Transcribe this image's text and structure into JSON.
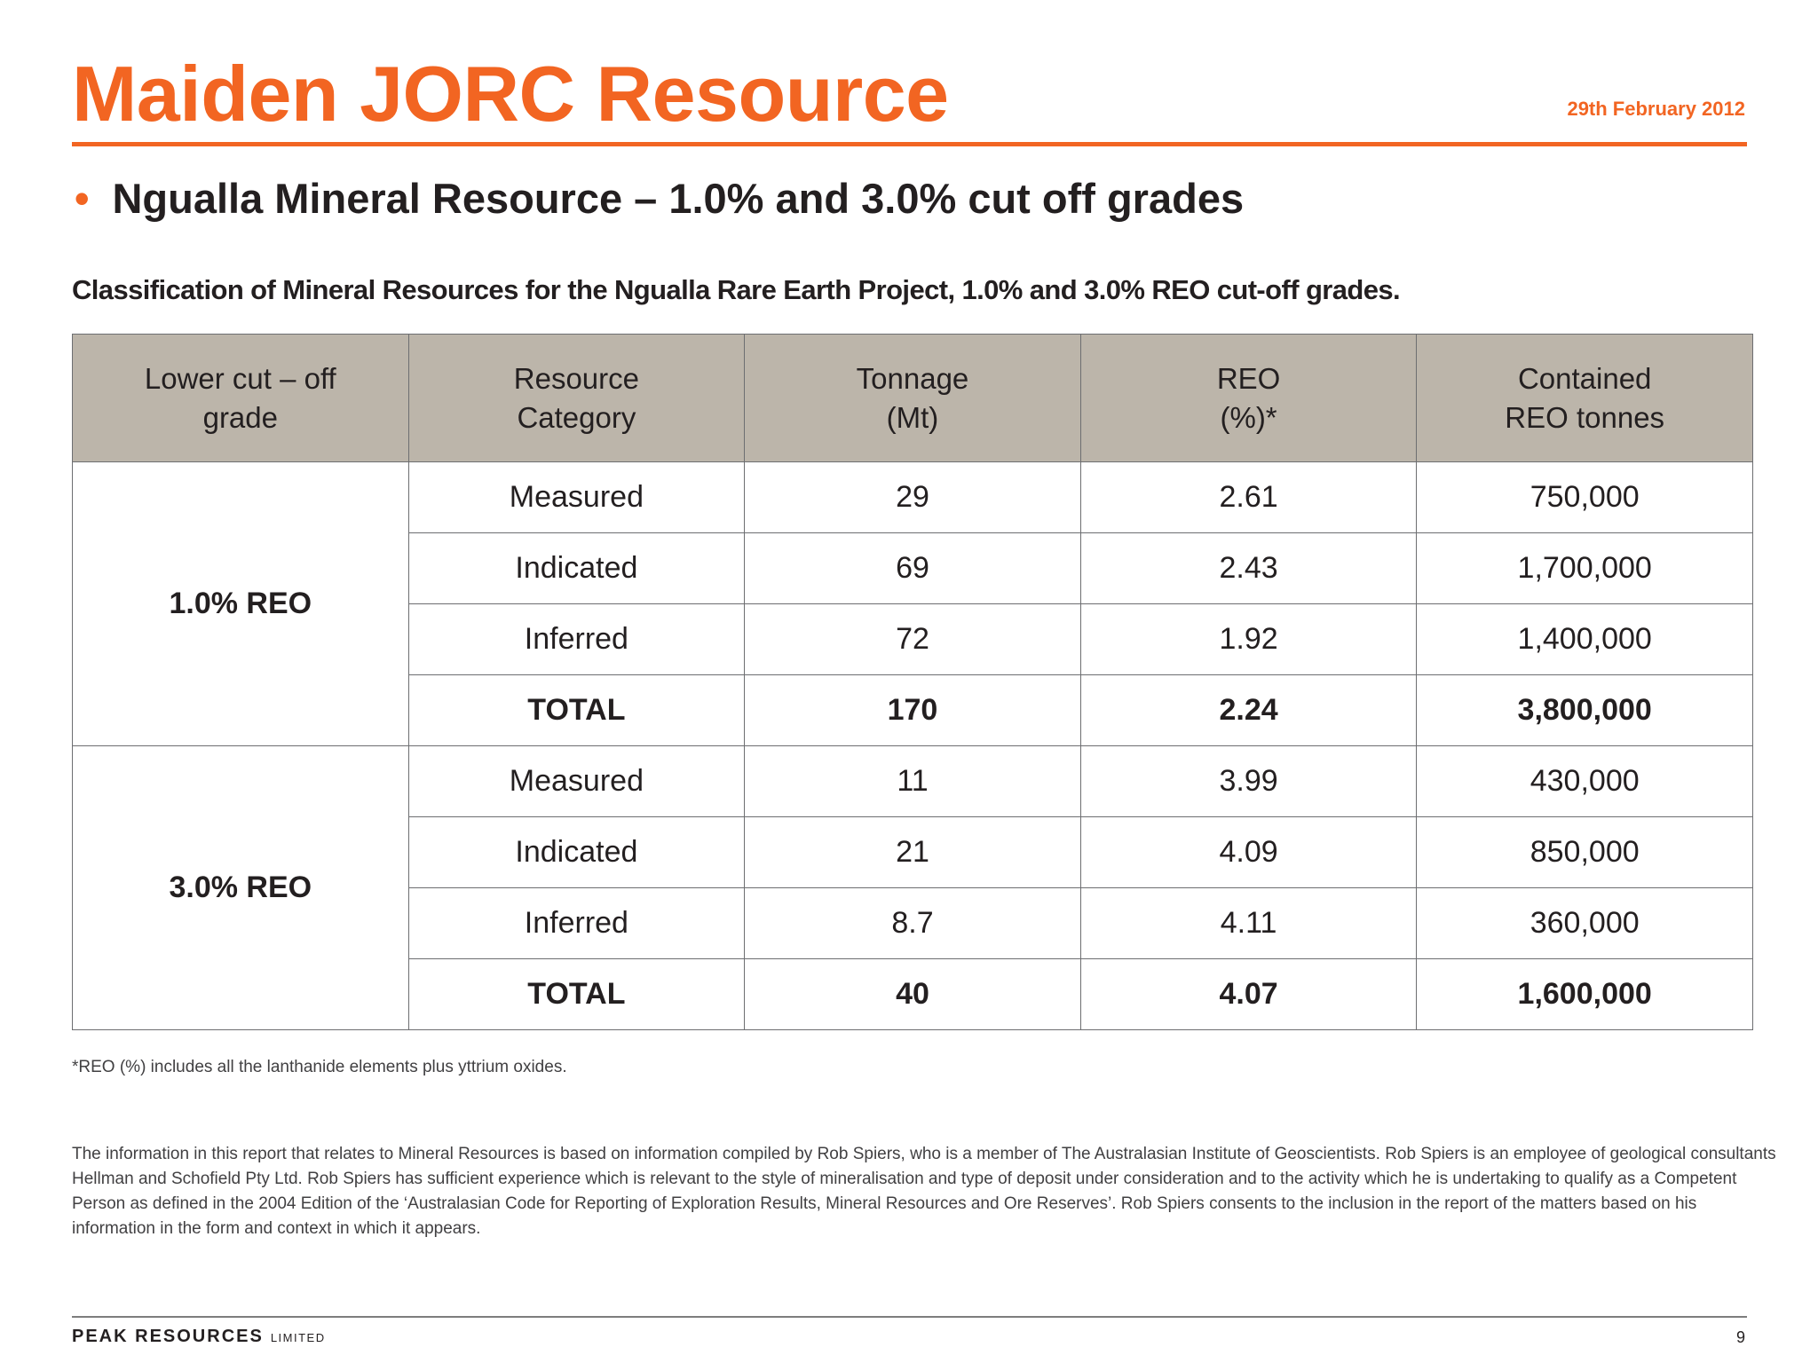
{
  "slide": {
    "title": "Maiden JORC Resource",
    "date": "29th February 2012",
    "bullet": "Ngualla Mineral Resource – 1.0% and 3.0% cut off grades",
    "caption": "Classification of Mineral Resources for the Ngualla Rare Earth Project, 1.0% and 3.0% REO cut-off grades."
  },
  "table": {
    "headers": {
      "grade_1": "Lower cut – off",
      "grade_2": "grade",
      "category_1": "Resource",
      "category_2": "Category",
      "tonnage_1": "Tonnage",
      "tonnage_2": "(Mt)",
      "reo_1": "REO",
      "reo_2": "(%)*",
      "contained_1": "Contained",
      "contained_2": "REO tonnes"
    },
    "groups": [
      {
        "grade": "1.0% REO",
        "rows": [
          {
            "category": "Measured",
            "tonnage": "29",
            "reo": "2.61",
            "contained": "750,000"
          },
          {
            "category": "Indicated",
            "tonnage": "69",
            "reo": "2.43",
            "contained": "1,700,000"
          },
          {
            "category": "Inferred",
            "tonnage": "72",
            "reo": "1.92",
            "contained": "1,400,000"
          },
          {
            "category": "TOTAL",
            "tonnage": "170",
            "reo": "2.24",
            "contained": "3,800,000"
          }
        ]
      },
      {
        "grade": "3.0% REO",
        "rows": [
          {
            "category": "Measured",
            "tonnage": "11",
            "reo": "3.99",
            "contained": "430,000"
          },
          {
            "category": "Indicated",
            "tonnage": "21",
            "reo": "4.09",
            "contained": "850,000"
          },
          {
            "category": "Inferred",
            "tonnage": "8.7",
            "reo": "4.11",
            "contained": "360,000"
          },
          {
            "category": "TOTAL",
            "tonnage": "40",
            "reo": "4.07",
            "contained": "1,600,000"
          }
        ]
      }
    ]
  },
  "footnote": "*REO (%) includes all the lanthanide elements plus yttrium oxides.",
  "disclaimer": "The information in this report that relates to Mineral Resources is based on information compiled by Rob Spiers, who is a member of The Australasian Institute of Geoscientists. Rob Spiers is an employee of geological consultants Hellman and Schofield Pty Ltd. Rob Spiers has sufficient experience which is relevant to the style of mineralisation and type of deposit under consideration and to the activity which he is undertaking to qualify as a Competent Person as defined in the 2004 Edition of the ‘Australasian Code for Reporting of Exploration Results, Mineral Resources and Ore Reserves’. Rob Spiers consents to the inclusion in the report of the matters based on his information in the form and context in which it appears.",
  "footer": {
    "company": "PEAK RESOURCES",
    "company_suffix": "LIMITED",
    "page_number": "9"
  },
  "colors": {
    "accent": "#f26522",
    "header_fill": "#bcb5aa",
    "text": "#231f20"
  }
}
